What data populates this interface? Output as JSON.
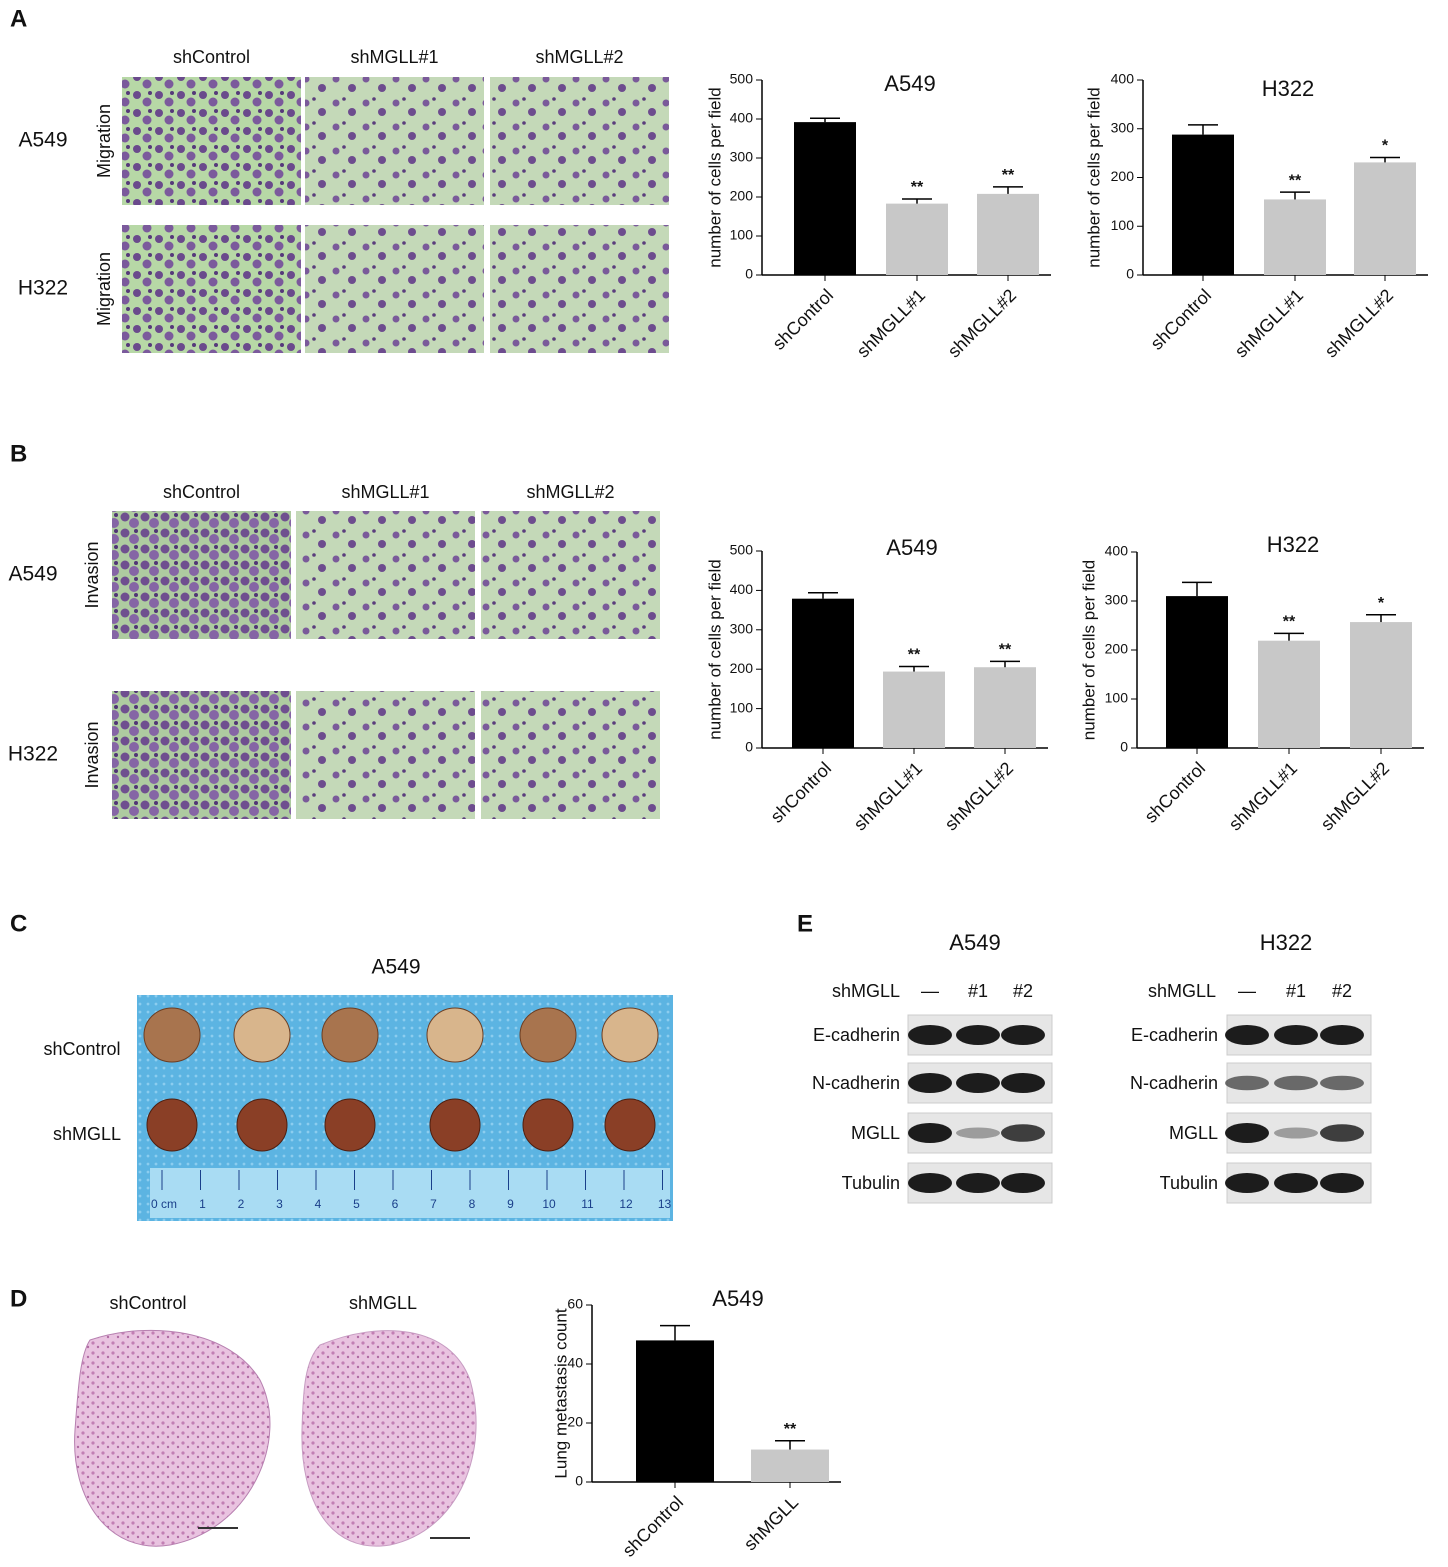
{
  "panels": [
    {
      "label": "A",
      "columns": [
        "shControl",
        "shMGLL#1",
        "shMGLL#2"
      ],
      "rows": [
        {
          "cell": "A549",
          "assay": "Migration"
        },
        {
          "cell": "H322",
          "assay": "Migration"
        }
      ]
    },
    {
      "label": "B",
      "columns": [
        "shControl",
        "shMGLL#1",
        "shMGLL#2"
      ],
      "rows": [
        {
          "cell": "A549",
          "assay": "Invasion"
        },
        {
          "cell": "H322",
          "assay": "Invasion"
        }
      ]
    },
    {
      "label": "C",
      "title": "A549",
      "rows": [
        "shControl",
        "shMGLL"
      ],
      "ruler": [
        "0 cm",
        "1",
        "2",
        "3",
        "4",
        "5",
        "6",
        "7",
        "8",
        "9",
        "10",
        "11",
        "12",
        "13"
      ]
    },
    {
      "label": "D",
      "columns": [
        "shControl",
        "shMGLL"
      ]
    },
    {
      "label": "E",
      "blots": [
        {
          "title": "A549",
          "header": "shMGLL",
          "lanes": [
            "—",
            "#1",
            "#2"
          ],
          "proteins": [
            "E-cadherin",
            "N-cadherin",
            "MGLL",
            "Tubulin"
          ]
        },
        {
          "title": "H322",
          "header": "shMGLL",
          "lanes": [
            "—",
            "#1",
            "#2"
          ],
          "proteins": [
            "E-cadherin",
            "N-cadherin",
            "MGLL",
            "Tubulin"
          ]
        }
      ]
    }
  ],
  "chart_data": [
    {
      "type": "bar",
      "title": "A549",
      "ylabel": "number of cells per field",
      "categories": [
        "shControl",
        "shMGLL#1",
        "shMGLL#2"
      ],
      "values": [
        392,
        183,
        208
      ],
      "errors": [
        10,
        12,
        18
      ],
      "significance": [
        null,
        "**",
        "**"
      ],
      "colors": [
        "#000000",
        "#c8c8c8",
        "#c8c8c8"
      ],
      "ylim": [
        0,
        500
      ],
      "yticks": [
        0,
        100,
        200,
        300,
        400,
        500
      ]
    },
    {
      "type": "bar",
      "title": "H322",
      "ylabel": "number of cells per field",
      "categories": [
        "shControl",
        "shMGLL#1",
        "shMGLL#2"
      ],
      "values": [
        288,
        155,
        231
      ],
      "errors": [
        20,
        15,
        10
      ],
      "significance": [
        null,
        "**",
        "*"
      ],
      "colors": [
        "#000000",
        "#c8c8c8",
        "#c8c8c8"
      ],
      "ylim": [
        0,
        400
      ],
      "yticks": [
        0,
        100,
        200,
        300,
        400
      ]
    },
    {
      "type": "bar",
      "title": "A549",
      "ylabel": "number of cells per field",
      "categories": [
        "shControl",
        "shMGLL#1",
        "shMGLL#2"
      ],
      "values": [
        379,
        194,
        205
      ],
      "errors": [
        15,
        13,
        15
      ],
      "significance": [
        null,
        "**",
        "**"
      ],
      "colors": [
        "#000000",
        "#c8c8c8",
        "#c8c8c8"
      ],
      "ylim": [
        0,
        500
      ],
      "yticks": [
        0,
        100,
        200,
        300,
        400,
        500
      ]
    },
    {
      "type": "bar",
      "title": "H322",
      "ylabel": "number of cells per field",
      "categories": [
        "shControl",
        "shMGLL#1",
        "shMGLL#2"
      ],
      "values": [
        310,
        219,
        257
      ],
      "errors": [
        28,
        15,
        15
      ],
      "significance": [
        null,
        "**",
        "*"
      ],
      "colors": [
        "#000000",
        "#c8c8c8",
        "#c8c8c8"
      ],
      "ylim": [
        0,
        400
      ],
      "yticks": [
        0,
        100,
        200,
        300,
        400
      ]
    },
    {
      "type": "bar",
      "title": "A549",
      "ylabel": "Lung metastasis count",
      "categories": [
        "shControl",
        "shMGLL"
      ],
      "values": [
        48,
        11
      ],
      "errors": [
        5,
        3
      ],
      "significance": [
        null,
        "**"
      ],
      "colors": [
        "#000000",
        "#c8c8c8"
      ],
      "ylim": [
        0,
        60
      ],
      "yticks": [
        0,
        20,
        40,
        60
      ]
    }
  ]
}
